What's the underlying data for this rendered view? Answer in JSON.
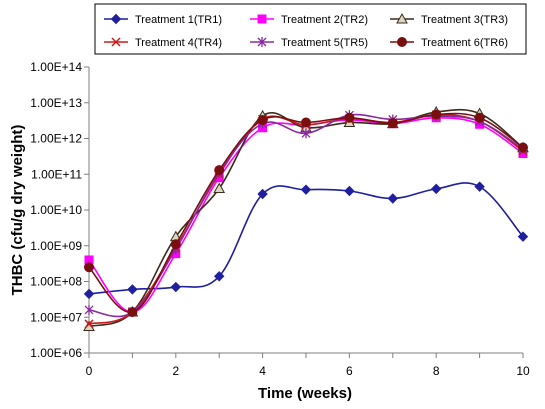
{
  "chart_data": {
    "type": "line",
    "title": "",
    "xlabel": "Time (weeks)",
    "ylabel": "THBC (cfu/g dry weight)",
    "y_scale": "log",
    "xlim": [
      0,
      10
    ],
    "ylim": [
      1000000,
      100000000000000
    ],
    "x_ticks": [
      "0",
      "2",
      "4",
      "6",
      "8",
      "10"
    ],
    "y_ticks": [
      "1.00E+06",
      "1.00E+07",
      "1.00E+08",
      "1.00E+09",
      "1.00E+10",
      "1.00E+11",
      "1.00E+12",
      "1.00E+13",
      "1.00E+14"
    ],
    "grid": false,
    "legend_position": "top",
    "x": [
      0,
      1,
      2,
      3,
      4,
      5,
      6,
      7,
      8,
      9,
      10
    ],
    "series": [
      {
        "name": "Treatment 1(TR1)",
        "color": "#1f1f9f",
        "marker": "diamond",
        "values": [
          45000000,
          60000000,
          70000000,
          140000000,
          28000000000,
          37000000000,
          34000000000,
          21000000000,
          39000000000,
          45000000000,
          1800000000
        ]
      },
      {
        "name": "Treatment 2(TR2)",
        "color": "#ff00ff",
        "marker": "square",
        "values": [
          400000000,
          14000000,
          600000000,
          80000000000,
          2000000000000,
          2400000000000,
          3300000000000,
          2600000000000,
          3800000000000,
          2500000000000,
          380000000000
        ]
      },
      {
        "name": "Treatment 3(TR3)",
        "color": "#3c2a1a",
        "marker": "triangle",
        "values": [
          5500000,
          14000000,
          1800000000,
          40000000000,
          4300000000000,
          2000000000000,
          2800000000000,
          2600000000000,
          5500000000000,
          5000000000000,
          550000000000
        ]
      },
      {
        "name": "Treatment 4(TR4)",
        "color": "#cc1a1a",
        "marker": "x",
        "values": [
          6500000,
          14000000,
          900000000,
          100000000000,
          3500000000000,
          2400000000000,
          3600000000000,
          2800000000000,
          4600000000000,
          3000000000000,
          450000000000
        ]
      },
      {
        "name": "Treatment 5(TR5)",
        "color": "#8a2aa0",
        "marker": "star",
        "values": [
          16000000,
          14000000,
          800000000,
          110000000000,
          2600000000000,
          1400000000000,
          4500000000000,
          3400000000000,
          4200000000000,
          3000000000000,
          500000000000
        ]
      },
      {
        "name": "Treatment 6(TR6)",
        "color": "#7a0f0f",
        "marker": "circle",
        "values": [
          250000000,
          14000000,
          1100000000,
          130000000000,
          3300000000000,
          2800000000000,
          3800000000000,
          2700000000000,
          4700000000000,
          3800000000000,
          560000000000
        ]
      }
    ]
  }
}
